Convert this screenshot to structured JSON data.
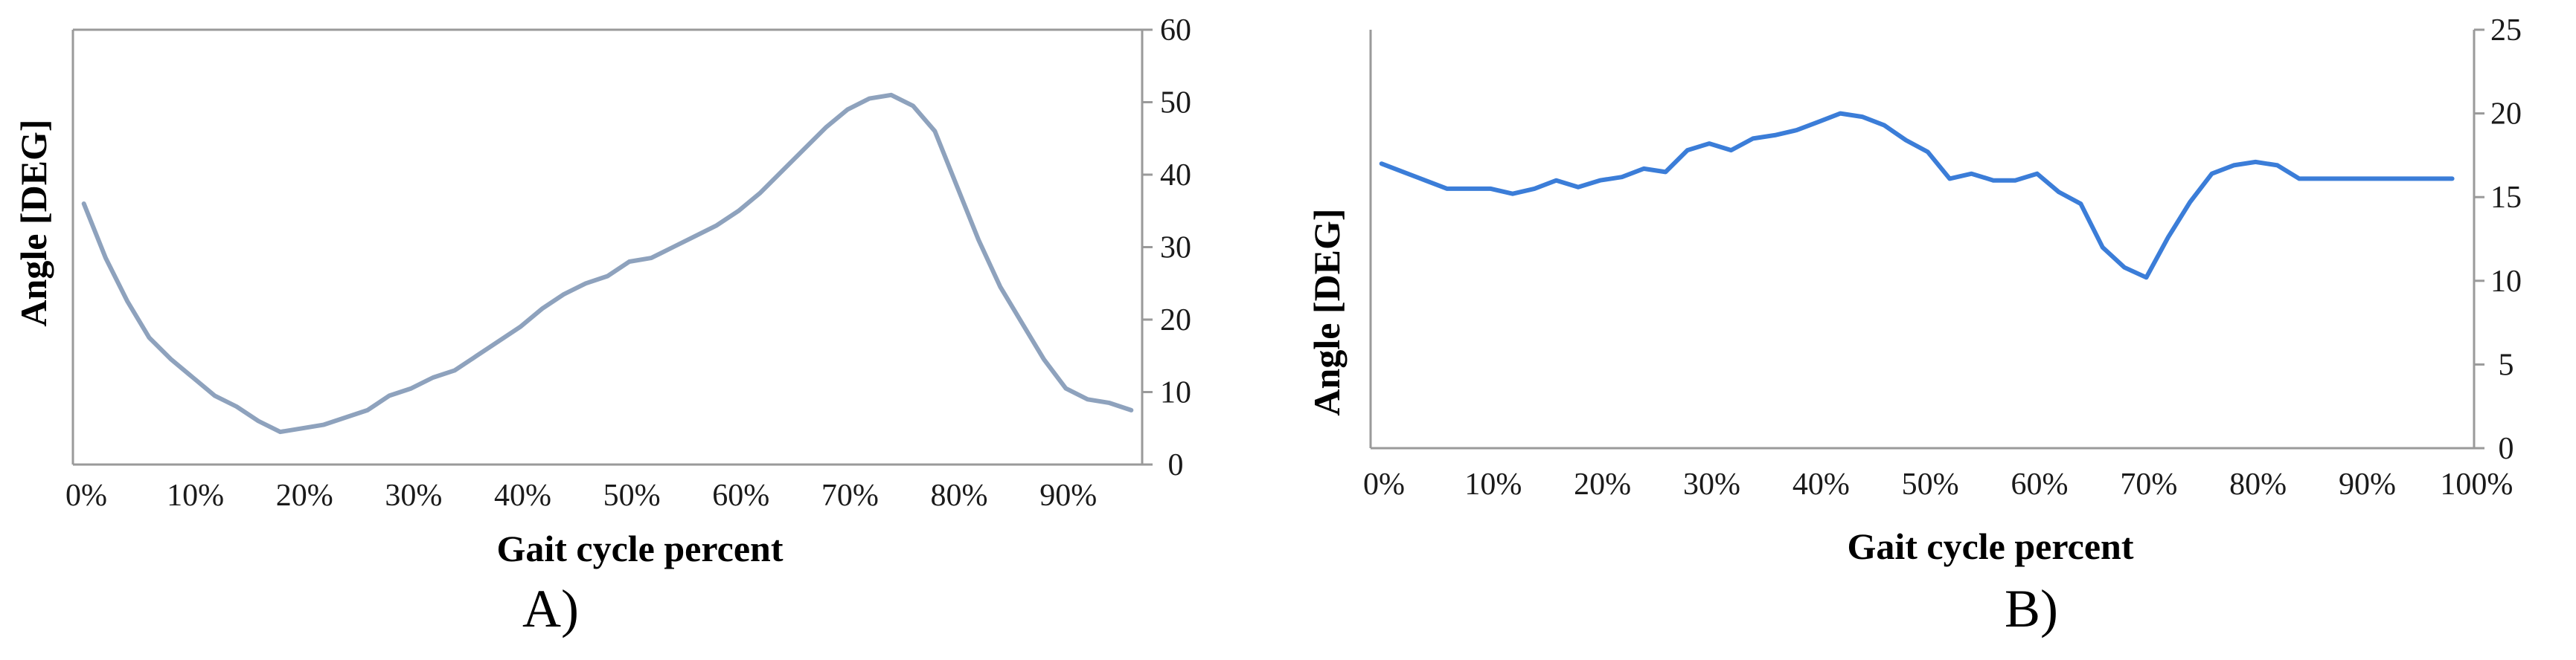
{
  "chart_data": [
    {
      "type": "line",
      "panel_label": "A)",
      "xlabel": "Gait cycle percent",
      "ylabel": "Angle   [DEG]",
      "y_axis_side": "right",
      "ylim": [
        0,
        60
      ],
      "yticks": [
        0,
        10,
        20,
        30,
        40,
        50,
        60
      ],
      "xlim": [
        0,
        98
      ],
      "xticks": [
        0,
        10,
        20,
        30,
        40,
        50,
        60,
        70,
        80,
        90
      ],
      "xtick_labels": [
        "0%",
        "10%",
        "20%",
        "30%",
        "40%",
        "50%",
        "60%",
        "70%",
        "80%",
        "90%"
      ],
      "grid": false,
      "color": "#8ea2bd",
      "series": [
        {
          "x": [
            1,
            3,
            5,
            7,
            9,
            11,
            13,
            15,
            17,
            19,
            21,
            23,
            25,
            27,
            29,
            31,
            33,
            35,
            37,
            39,
            41,
            43,
            45,
            47,
            49,
            51,
            53,
            55,
            57,
            59,
            61,
            63,
            65,
            67,
            69,
            71,
            73,
            75,
            77,
            79,
            81,
            83,
            85,
            87,
            89,
            91,
            93,
            95,
            97
          ],
          "y": [
            36,
            28.5,
            22.5,
            17.5,
            14.5,
            12,
            9.5,
            8,
            6,
            4.5,
            5,
            5.5,
            6.5,
            7.5,
            9.5,
            10.5,
            12,
            13,
            15,
            17,
            19,
            21.5,
            23.5,
            25,
            26,
            28,
            28.5,
            30,
            31.5,
            33,
            35,
            37.5,
            40.5,
            43.5,
            46.5,
            49,
            50.5,
            51,
            49.5,
            46,
            38.5,
            31,
            24.5,
            19.5,
            14.5,
            10.5,
            9,
            8.5,
            7.5
          ]
        }
      ]
    },
    {
      "type": "line",
      "panel_label": "B)",
      "xlabel": "Gait cycle percent",
      "ylabel": "Angle    [DEG]",
      "y_axis_side": "right",
      "ylim": [
        0,
        25
      ],
      "yticks": [
        0,
        5,
        10,
        15,
        20,
        25
      ],
      "xlim": [
        0,
        101
      ],
      "xticks": [
        0,
        10,
        20,
        30,
        40,
        50,
        60,
        70,
        80,
        90,
        100
      ],
      "xtick_labels": [
        "0%",
        "10%",
        "20%",
        "30%",
        "40%",
        "50%",
        "60%",
        "70%",
        "80%",
        "90%",
        "100%"
      ],
      "grid": false,
      "color": "#3b7dd8",
      "series": [
        {
          "x": [
            1,
            3,
            5,
            7,
            9,
            11,
            13,
            15,
            17,
            19,
            21,
            23,
            25,
            27,
            29,
            31,
            33,
            35,
            37,
            39,
            41,
            43,
            45,
            47,
            49,
            51,
            53,
            55,
            57,
            59,
            61,
            63,
            65,
            67,
            69,
            71,
            73,
            75,
            77,
            79,
            81,
            83,
            85,
            87,
            89,
            91,
            93,
            95,
            97,
            99
          ],
          "y": [
            17,
            16.5,
            16,
            15.5,
            15.5,
            15.5,
            15.2,
            15.5,
            16,
            15.6,
            16,
            16.2,
            16.7,
            16.5,
            17.8,
            18.2,
            17.8,
            18.5,
            18.7,
            19,
            19.5,
            20,
            19.8,
            19.3,
            18.4,
            17.7,
            16.1,
            16.4,
            16,
            16,
            16.4,
            15.3,
            14.6,
            12,
            10.8,
            10.2,
            12.6,
            14.7,
            16.4,
            16.9,
            17.1,
            16.9,
            16.1,
            16.1,
            16.1,
            16.1,
            16.1,
            16.1,
            16.1,
            16.1
          ]
        }
      ]
    }
  ]
}
